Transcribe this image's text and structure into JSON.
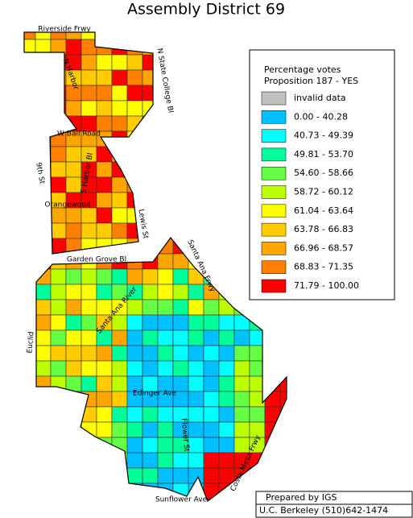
{
  "title": "Assembly District 69",
  "legend": {
    "title_lines": [
      "Percentage votes",
      "Proposition 187 - YES"
    ],
    "items": [
      {
        "label": "invalid data",
        "color": "#c0c0c0"
      },
      {
        "label": "0.00 - 40.28",
        "color": "#00c0ff"
      },
      {
        "label": "40.73 - 49.39",
        "color": "#00ffff"
      },
      {
        "label": "49.81 - 53.70",
        "color": "#00ff99"
      },
      {
        "label": "54.60 - 58.66",
        "color": "#66ff44"
      },
      {
        "label": "58.72 - 60.12",
        "color": "#bbff00"
      },
      {
        "label": "61.04 - 63.64",
        "color": "#ffff00"
      },
      {
        "label": "63.78 - 66.83",
        "color": "#ffcc00"
      },
      {
        "label": "66.96 - 68.57",
        "color": "#ffa500"
      },
      {
        "label": "68.83 - 71.35",
        "color": "#ff7f00"
      },
      {
        "label": "71.79 - 100.00",
        "color": "#ff0000"
      }
    ]
  },
  "streets": [
    "Riverside Frwy",
    "N Harbor",
    "N State College Bl",
    "W Ball Road",
    "S Harbor Bl",
    "9th St",
    "Orangewood",
    "Lewis St",
    "Santa Ana Frwy",
    "Garden Grove Bl",
    "Santa Ana River",
    "Euclid",
    "Edinger Ave",
    "Flower St",
    "Sunflower Ave",
    "Costa Mesa Frwy"
  ],
  "footer": [
    "Prepared by IGS",
    "U.C. Berkeley (510)642-1474"
  ]
}
